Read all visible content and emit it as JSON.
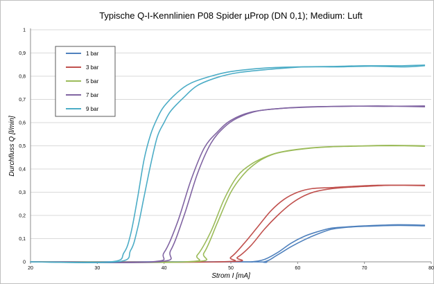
{
  "chart_data": {
    "type": "line",
    "title": "Typische Q-I-Kennlinien P08 Spider µProp (DN 0,1); Medium: Luft",
    "xlabel": "Strom I [mA]",
    "ylabel": "Durchfluss Q [l/min]",
    "xlim": [
      20,
      80
    ],
    "ylim": [
      0,
      1
    ],
    "x_ticks": [
      "20",
      "30",
      "40",
      "50",
      "60",
      "70",
      "80"
    ],
    "y_ticks": [
      "0",
      "0,1",
      "0,2",
      "0,3",
      "0,4",
      "0,5",
      "0,6",
      "0,7",
      "0,8",
      "0,9",
      "1"
    ],
    "grid": "horizontal",
    "legend_position": "top-left",
    "series": [
      {
        "name": "1 bar",
        "color": "#4f81bd",
        "curves": [
          {
            "x": [
              20,
              50,
              53,
              55,
              57,
              59,
              61,
              63,
              65,
              67,
              70,
              75,
              79
            ],
            "y": [
              0,
              0,
              0,
              0.01,
              0.04,
              0.08,
              0.11,
              0.13,
              0.145,
              0.15,
              0.155,
              0.16,
              0.158
            ]
          },
          {
            "x": [
              20,
              52,
              55,
              57,
              59,
              61,
              63,
              65,
              67,
              70,
              75,
              79
            ],
            "y": [
              0,
              0,
              0,
              0.03,
              0.065,
              0.095,
              0.12,
              0.14,
              0.148,
              0.153,
              0.157,
              0.155
            ]
          }
        ]
      },
      {
        "name": "3 bar",
        "color": "#c0504d",
        "curves": [
          {
            "x": [
              20,
              48,
              50,
              52,
              54,
              56,
              58,
              60,
              62,
              65,
              68,
              72,
              76,
              79
            ],
            "y": [
              0,
              0,
              0.02,
              0.08,
              0.15,
              0.22,
              0.27,
              0.3,
              0.315,
              0.32,
              0.325,
              0.33,
              0.33,
              0.328
            ]
          },
          {
            "x": [
              20,
              49,
              51,
              53,
              55,
              57,
              59,
              61,
              63,
              66,
              70,
              74,
              79
            ],
            "y": [
              0,
              0,
              0.02,
              0.07,
              0.14,
              0.2,
              0.25,
              0.285,
              0.305,
              0.318,
              0.325,
              0.33,
              0.33
            ]
          }
        ]
      },
      {
        "name": "5 bar",
        "color": "#9bbb59",
        "curves": [
          {
            "x": [
              20,
              43,
              45,
              47,
              49,
              51,
              53,
              55,
              57,
              60,
              64,
              68,
              72,
              76,
              79
            ],
            "y": [
              0,
              0,
              0.03,
              0.13,
              0.27,
              0.37,
              0.42,
              0.45,
              0.47,
              0.485,
              0.495,
              0.498,
              0.5,
              0.5,
              0.498
            ]
          },
          {
            "x": [
              20,
              44,
              46,
              48,
              50,
              52,
              54,
              56,
              58,
              62,
              66,
              70,
              74,
              79
            ],
            "y": [
              0,
              0,
              0.04,
              0.17,
              0.3,
              0.38,
              0.43,
              0.46,
              0.475,
              0.49,
              0.497,
              0.5,
              0.502,
              0.5
            ]
          }
        ]
      },
      {
        "name": "7 bar",
        "color": "#8064a2",
        "curves": [
          {
            "x": [
              20,
              38,
              40,
              42,
              44,
              46,
              48,
              50,
              53,
              57,
              62,
              67,
              72,
              76,
              79
            ],
            "y": [
              0,
              0,
              0.04,
              0.17,
              0.35,
              0.49,
              0.56,
              0.61,
              0.645,
              0.66,
              0.668,
              0.67,
              0.672,
              0.67,
              0.668
            ]
          },
          {
            "x": [
              20,
              39,
              41,
              43,
              45,
              47,
              49,
              51,
              54,
              58,
              63,
              68,
              73,
              79
            ],
            "y": [
              0,
              0,
              0.05,
              0.2,
              0.38,
              0.51,
              0.58,
              0.62,
              0.65,
              0.662,
              0.668,
              0.671,
              0.67,
              0.672
            ]
          }
        ]
      },
      {
        "name": "9 bar",
        "color": "#4bacc6",
        "curves": [
          {
            "x": [
              20,
              32,
              34,
              35,
              36,
              37,
              38,
              39,
              40,
              42,
              44,
              47,
              50,
              55,
              60,
              65,
              70,
              75,
              79
            ],
            "y": [
              0,
              0,
              0.04,
              0.12,
              0.27,
              0.44,
              0.55,
              0.62,
              0.67,
              0.73,
              0.77,
              0.8,
              0.82,
              0.835,
              0.84,
              0.842,
              0.845,
              0.845,
              0.848
            ]
          },
          {
            "x": [
              20,
              33,
              35,
              36,
              37,
              38,
              39,
              40,
              41,
              43,
              45,
              48,
              51,
              56,
              61,
              66,
              71,
              76,
              79
            ],
            "y": [
              0,
              0,
              0.05,
              0.14,
              0.28,
              0.42,
              0.54,
              0.6,
              0.65,
              0.71,
              0.76,
              0.795,
              0.815,
              0.83,
              0.84,
              0.84,
              0.843,
              0.84,
              0.845
            ]
          }
        ]
      }
    ]
  }
}
